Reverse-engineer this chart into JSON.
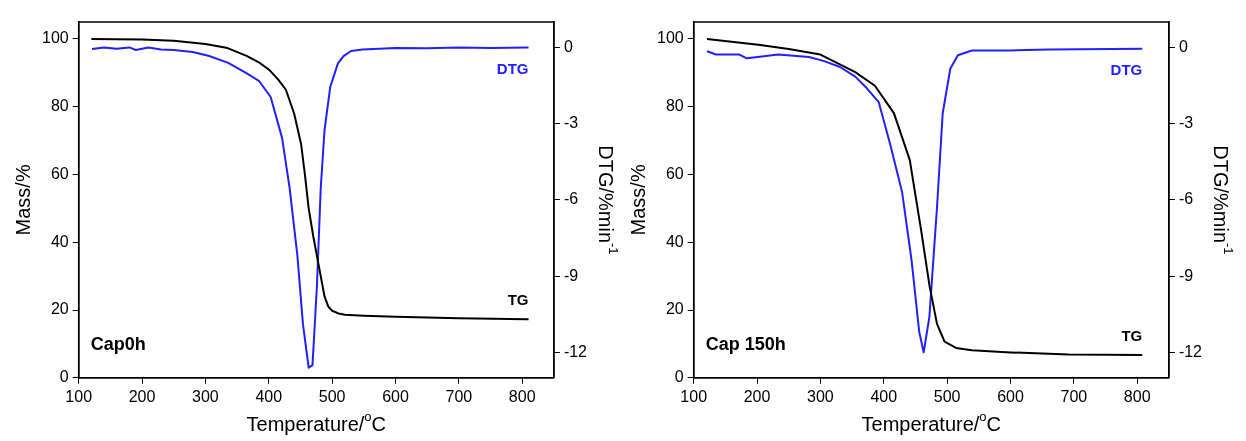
{
  "chart_data": [
    {
      "type": "line",
      "xlabel": "Temperature/$^{o}$C",
      "ylabel": "Mass/%",
      "y2label": "DTG/%min$^{-1}$",
      "annotations": [
        "Cap0h"
      ],
      "xlim": [
        100,
        850
      ],
      "xticks": [
        100,
        200,
        300,
        400,
        500,
        600,
        700,
        800
      ],
      "ylim": [
        0,
        105
      ],
      "yticks": [
        0,
        20,
        40,
        60,
        80,
        100
      ],
      "y2lim": [
        -13,
        1
      ],
      "y2ticks": [
        -12,
        -9,
        -6,
        -3,
        0
      ],
      "grid": false,
      "legend": false,
      "marker": "none",
      "line_style": "solid",
      "series": [
        {
          "name": "TG",
          "color": "#000000",
          "axis": "y",
          "x": [
            120,
            200,
            250,
            300,
            335,
            365,
            385,
            400,
            415,
            427,
            440,
            451,
            457,
            463,
            470,
            476,
            482,
            488,
            494,
            500,
            510,
            520,
            550,
            600,
            700,
            810
          ],
          "values": [
            100,
            99.8,
            99.5,
            98.5,
            97.3,
            95,
            93,
            91,
            88,
            85,
            78,
            69,
            60,
            50,
            42,
            36,
            30,
            24,
            21,
            19.8,
            19,
            18.6,
            18.3,
            18,
            17.6,
            17.3
          ]
        },
        {
          "name": "DTG",
          "color": "#2020ff",
          "axis": "y2",
          "x": [
            121,
            140,
            160,
            180,
            190,
            210,
            230,
            250,
            280,
            306,
            336,
            366,
            385,
            403,
            421,
            433,
            445,
            454,
            463,
            469,
            476,
            482,
            488,
            497,
            509,
            518,
            530,
            548,
            600,
            650,
            700,
            750,
            810
          ],
          "values": [
            -0.06,
            0,
            -0.05,
            0,
            -0.1,
            0,
            -0.08,
            -0.1,
            -0.18,
            -0.34,
            -0.61,
            -1.03,
            -1.33,
            -1.95,
            -3.56,
            -5.55,
            -8.15,
            -10.9,
            -12.6,
            -12.5,
            -9.4,
            -5.55,
            -3.25,
            -1.56,
            -0.64,
            -0.34,
            -0.14,
            -0.08,
            -0.02,
            -0.03,
            0,
            -0.02,
            0
          ]
        }
      ]
    },
    {
      "type": "line",
      "xlabel": "Temperature/$^{o}$C",
      "ylabel": "Mass/%",
      "y2label": "DTG/%min$^{-1}$",
      "annotations": [
        "Cap 150h"
      ],
      "xlim": [
        100,
        850
      ],
      "xticks": [
        100,
        200,
        300,
        400,
        500,
        600,
        700,
        800
      ],
      "ylim": [
        0,
        105
      ],
      "yticks": [
        0,
        20,
        40,
        60,
        80,
        100
      ],
      "y2lim": [
        -13,
        1
      ],
      "y2ticks": [
        -12,
        -9,
        -6,
        -3,
        0
      ],
      "grid": false,
      "legend": false,
      "marker": "none",
      "line_style": "solid",
      "series": [
        {
          "name": "TG",
          "color": "#000000",
          "axis": "y",
          "x": [
            121,
            202,
            250,
            300,
            355,
            386,
            416,
            441,
            459,
            472,
            484,
            496,
            514,
            539,
            600,
            692,
            808
          ],
          "values": [
            100,
            98.3,
            97,
            95.4,
            90.2,
            86.2,
            78.1,
            64.3,
            43.5,
            27.4,
            15.9,
            10.7,
            8.8,
            8.1,
            7.5,
            6.9,
            6.7
          ]
        },
        {
          "name": "DTG",
          "color": "#2020ff",
          "axis": "y2",
          "x": [
            121,
            135,
            172,
            184,
            233,
            282,
            306,
            331,
            355,
            373,
            392,
            410,
            429,
            444,
            456,
            463,
            472,
            484,
            493,
            505,
            517,
            539,
            600,
            661,
            808
          ],
          "values": [
            -0.15,
            -0.28,
            -0.28,
            -0.43,
            -0.28,
            -0.38,
            -0.54,
            -0.77,
            -1.15,
            -1.6,
            -2.15,
            -3.8,
            -5.7,
            -8.4,
            -11.2,
            -12,
            -10.6,
            -6.3,
            -2.6,
            -0.84,
            -0.31,
            -0.12,
            -0.12,
            -0.08,
            -0.05
          ]
        }
      ]
    }
  ]
}
